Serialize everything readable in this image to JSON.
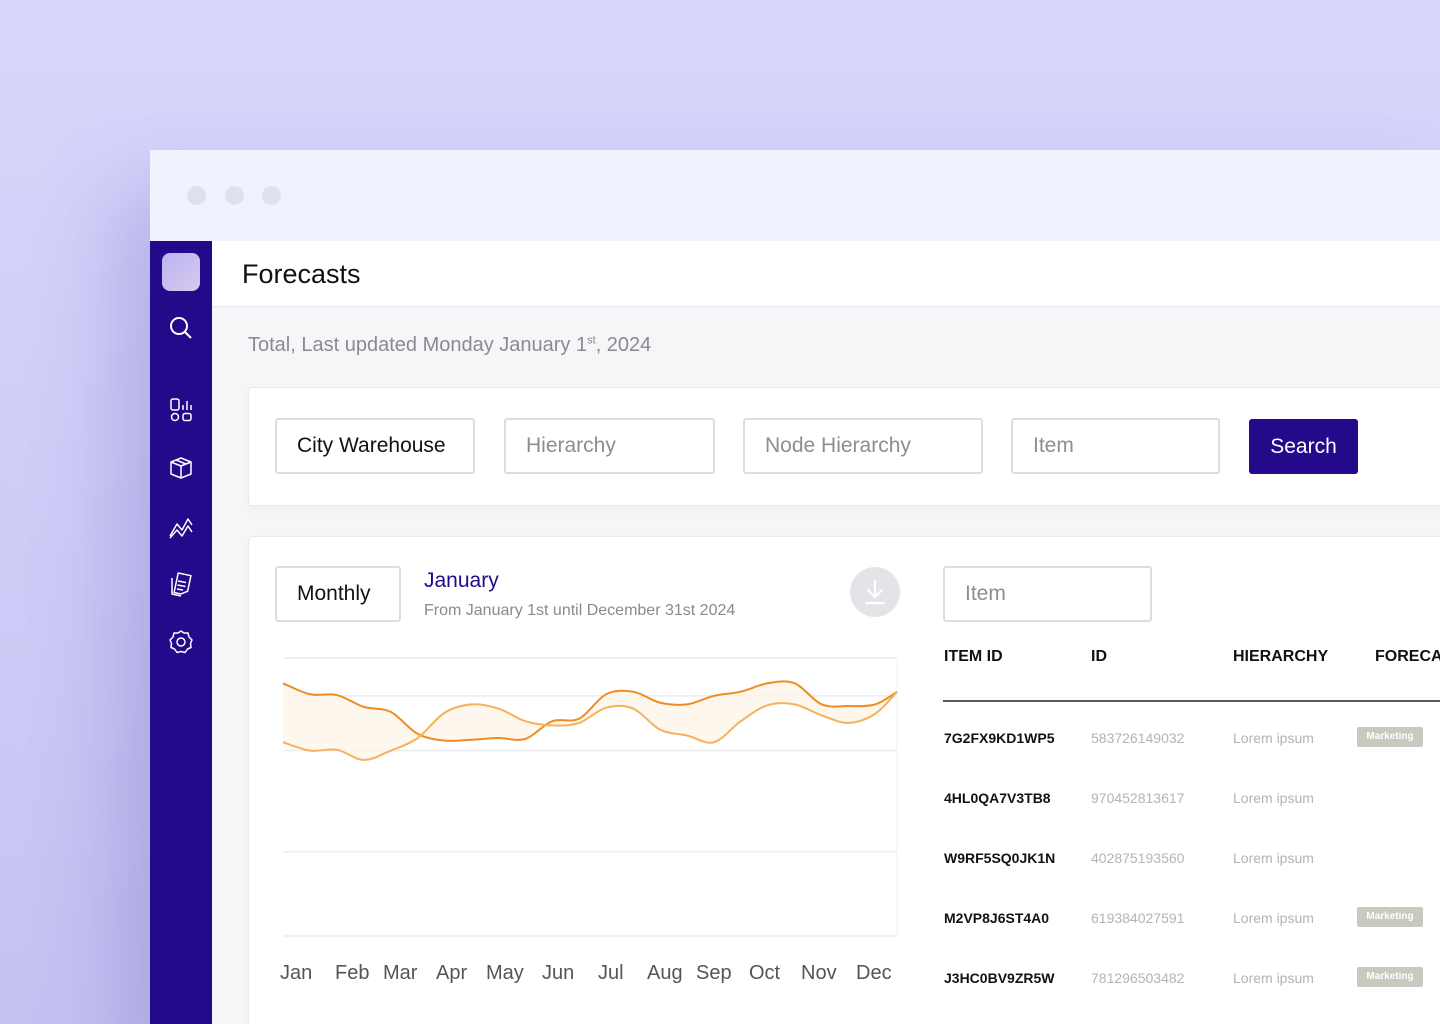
{
  "app": {
    "page_title": "Forecasts",
    "updated_prefix": "Total, Last updated Monday January 1",
    "updated_sup": "st",
    "updated_suffix": ", 2024"
  },
  "sidebar": {
    "icons": [
      "search-icon",
      "dashboard-icon",
      "box-icon",
      "analytics-icon",
      "documents-icon",
      "settings-icon"
    ]
  },
  "filters": {
    "location_value": "City Warehouse",
    "hierarchy_placeholder": "Hierarchy",
    "node_hierarchy_placeholder": "Node Hierarchy",
    "item_placeholder": "Item",
    "search_label": "Search"
  },
  "chart_panel": {
    "period_label": "Monthly",
    "title": "January",
    "subtitle": "From January 1st until December 31st 2024",
    "download_icon": "download-icon"
  },
  "chart_data": {
    "type": "line",
    "categories": [
      "Jan",
      "Feb",
      "Mar",
      "Apr",
      "May",
      "Jun",
      "Jul",
      "Aug",
      "Sep",
      "Oct",
      "Nov",
      "Dec"
    ],
    "x": [
      0,
      0.5,
      1,
      1.5,
      2,
      2.5,
      3,
      3.5,
      4,
      4.5,
      5,
      5.5,
      6,
      6.5,
      7,
      7.5,
      8,
      8.5,
      9,
      9.5,
      10,
      10.5,
      11,
      11.4
    ],
    "series": [
      {
        "values": [
          3.0,
          2.87,
          2.86,
          2.72,
          2.66,
          2.4,
          2.32,
          2.33,
          2.35,
          2.34,
          2.55,
          2.58,
          2.87,
          2.9,
          2.77,
          2.75,
          2.85,
          2.9,
          3.0,
          3.0,
          2.75,
          2.73,
          2.75,
          2.9
        ]
      },
      {
        "values": [
          2.3,
          2.2,
          2.21,
          2.09,
          2.2,
          2.35,
          2.65,
          2.75,
          2.7,
          2.55,
          2.5,
          2.53,
          2.71,
          2.7,
          2.45,
          2.38,
          2.3,
          2.55,
          2.74,
          2.75,
          2.62,
          2.53,
          2.64,
          2.9
        ]
      }
    ],
    "ylim": [
      0,
      3.3
    ],
    "grid": true,
    "colors": [
      "#ef8c26",
      "#f4b25a"
    ]
  },
  "table": {
    "search_placeholder": "Item",
    "headers": [
      "ITEM ID",
      "ID",
      "HIERARCHY",
      "FORECAS"
    ],
    "rows": [
      {
        "item_id": "7G2FX9KD1WP5",
        "id": "583726149032",
        "hierarchy": "Lorem ipsum",
        "tag": "Marketing"
      },
      {
        "item_id": "4HL0QA7V3TB8",
        "id": "970452813617",
        "hierarchy": "Lorem ipsum",
        "tag": ""
      },
      {
        "item_id": "W9RF5SQ0JK1N",
        "id": "402875193560",
        "hierarchy": "Lorem ipsum",
        "tag": ""
      },
      {
        "item_id": "M2VP8J6ST4A0",
        "id": "619384027591",
        "hierarchy": "Lorem ipsum",
        "tag": "Marketing"
      },
      {
        "item_id": "J3HC0BV9ZR5W",
        "id": "781296503482",
        "hierarchy": "Lorem ipsum",
        "tag": "Marketing"
      }
    ]
  },
  "colors": {
    "brand": "#240a8a",
    "accent_orange": "#ef8c26",
    "background": "#d8d7fc"
  }
}
